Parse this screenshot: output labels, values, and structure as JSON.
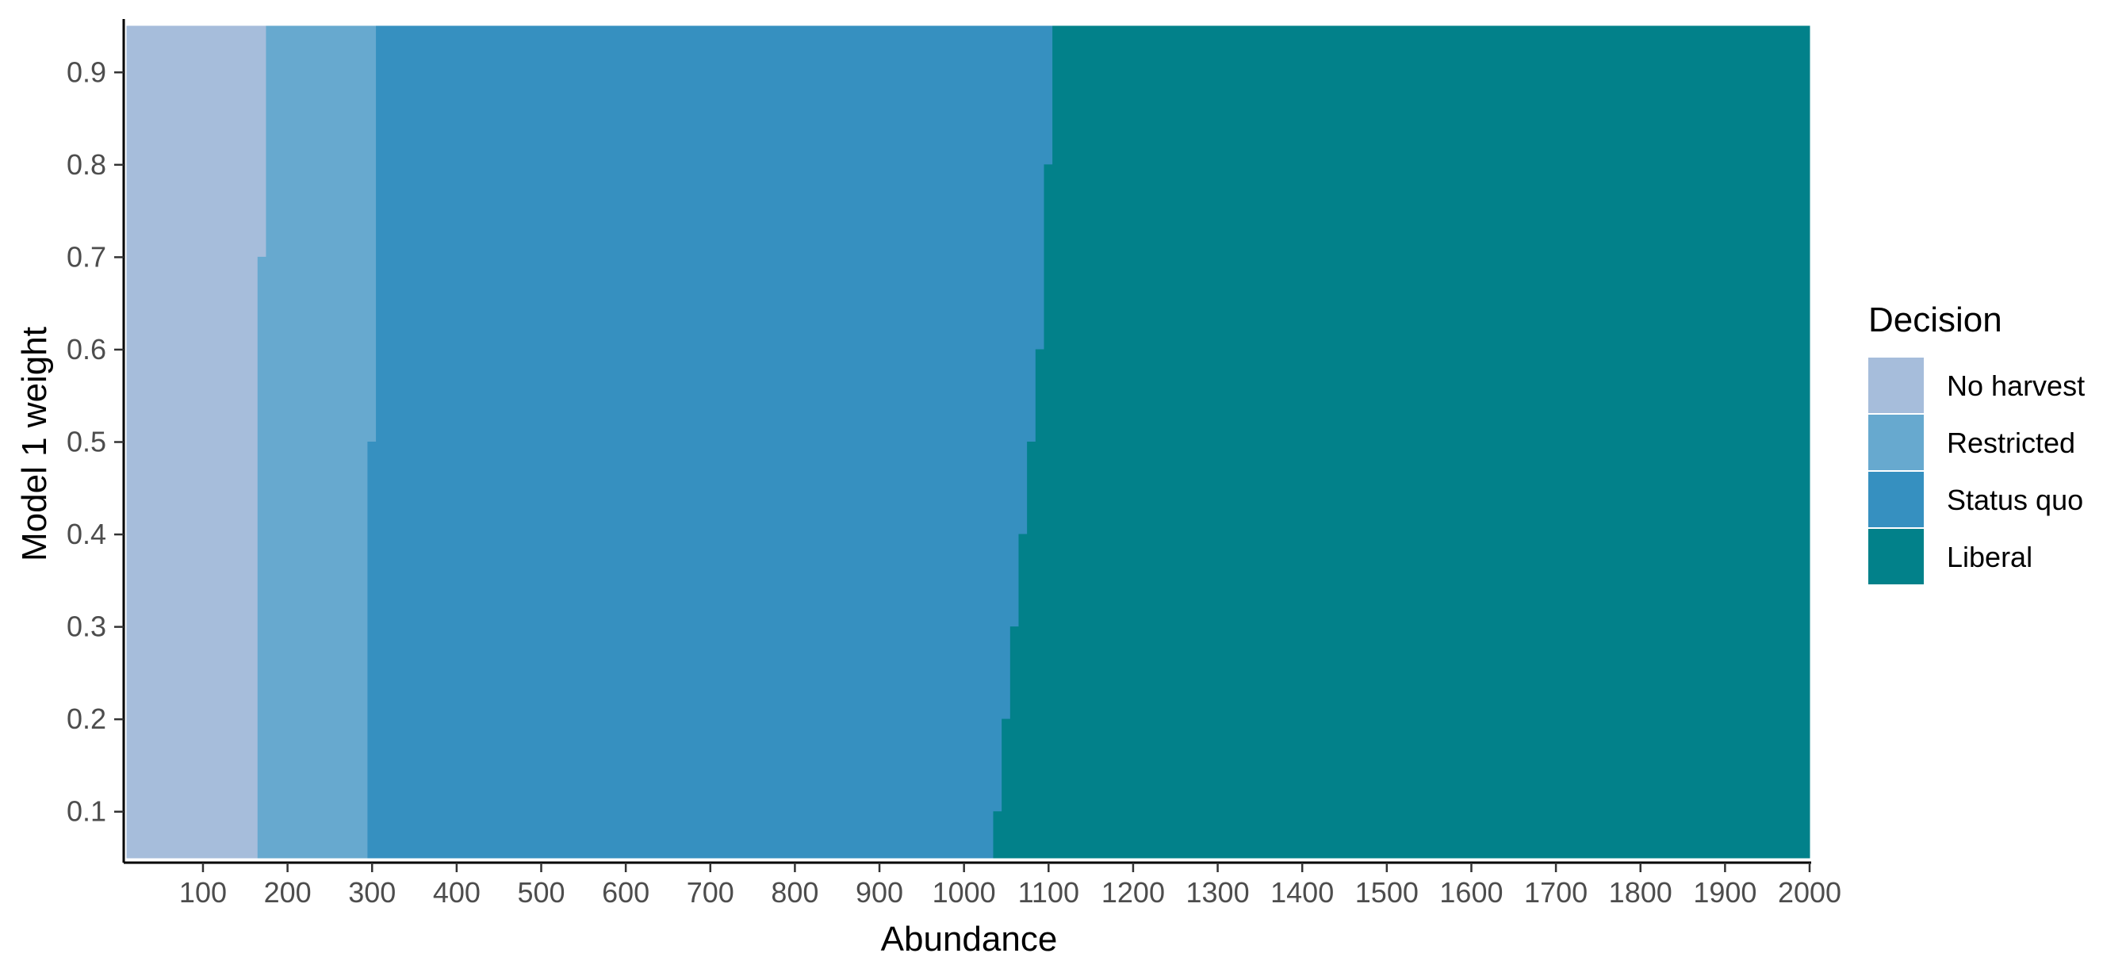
{
  "chart_data": {
    "type": "heatmap",
    "title": "",
    "xlabel": "Abundance",
    "ylabel": "Model 1 weight",
    "xlim": [
      10,
      2000
    ],
    "ylim": [
      0.05,
      0.95
    ],
    "x_ticks": [
      100,
      200,
      300,
      400,
      500,
      600,
      700,
      800,
      900,
      1000,
      1100,
      1200,
      1300,
      1400,
      1500,
      1600,
      1700,
      1800,
      1900,
      2000
    ],
    "y_ticks": [
      0.1,
      0.2,
      0.3,
      0.4,
      0.5,
      0.6,
      0.7,
      0.8,
      0.9
    ],
    "grid": false,
    "legend": {
      "title": "Decision",
      "position": "right",
      "entries": [
        {
          "name": "No harvest",
          "color": "#a6bddb"
        },
        {
          "name": "Restricted",
          "color": "#67a9cf"
        },
        {
          "name": "Status quo",
          "color": "#3690c0"
        },
        {
          "name": "Liberal",
          "color": "#02818a"
        }
      ]
    },
    "y_rows": [
      0.1,
      0.2,
      0.3,
      0.4,
      0.5,
      0.6,
      0.7,
      0.8,
      0.9
    ],
    "y_step": 0.05,
    "regions": [
      {
        "decision": "No harvest",
        "x_start": [
          10,
          10,
          10,
          10,
          10,
          10,
          10,
          10,
          10,
          10,
          10,
          10,
          10,
          10,
          10,
          10,
          10,
          10
        ],
        "x_end": [
          165,
          165,
          165,
          165,
          165,
          165,
          165,
          165,
          165,
          165,
          165,
          165,
          165,
          175,
          175,
          175,
          175,
          175
        ]
      },
      {
        "decision": "Restricted",
        "x_start": [
          165,
          165,
          165,
          165,
          165,
          165,
          165,
          165,
          165,
          165,
          165,
          165,
          165,
          175,
          175,
          175,
          175,
          175
        ],
        "x_end": [
          295,
          295,
          295,
          295,
          295,
          295,
          295,
          295,
          295,
          305,
          305,
          305,
          305,
          305,
          305,
          305,
          305,
          305
        ]
      },
      {
        "decision": "Status quo",
        "x_start": [
          295,
          295,
          295,
          295,
          295,
          295,
          295,
          295,
          295,
          305,
          305,
          305,
          305,
          305,
          305,
          305,
          305,
          305
        ],
        "x_end": [
          1035,
          1045,
          1045,
          1055,
          1055,
          1065,
          1065,
          1075,
          1075,
          1085,
          1085,
          1095,
          1095,
          1095,
          1095,
          1105,
          1105,
          1105
        ]
      },
      {
        "decision": "Liberal",
        "x_start": [
          1035,
          1045,
          1045,
          1055,
          1055,
          1065,
          1065,
          1075,
          1075,
          1085,
          1085,
          1095,
          1095,
          1095,
          1095,
          1105,
          1105,
          1105
        ],
        "x_end": [
          2000,
          2000,
          2000,
          2000,
          2000,
          2000,
          2000,
          2000,
          2000,
          2000,
          2000,
          2000,
          2000,
          2000,
          2000,
          2000,
          2000,
          2000
        ]
      }
    ]
  }
}
